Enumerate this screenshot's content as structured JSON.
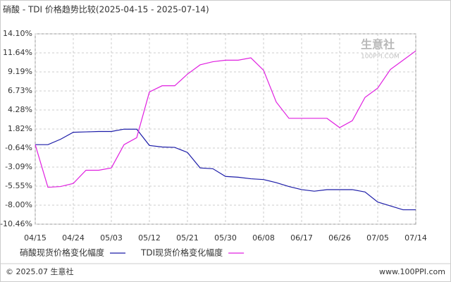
{
  "chart_data": {
    "type": "line",
    "title": "硝酸 - TDI 价格趋势比较(2025-04-15 - 2025-07-14)",
    "categories": [
      "04/15",
      null,
      null,
      "04/24",
      null,
      null,
      "05/03",
      null,
      null,
      "05/12",
      null,
      null,
      "05/21",
      null,
      null,
      "05/30",
      null,
      null,
      "06/08",
      null,
      null,
      "06/17",
      null,
      null,
      "06/26",
      null,
      null,
      "07/05",
      null,
      null,
      "07/14"
    ],
    "series": [
      {
        "name": "硝酸现货价格变化幅度",
        "color": "#1c1ca8",
        "values": [
          -0.2,
          -0.2,
          0.5,
          1.4,
          1.45,
          1.5,
          1.5,
          1.8,
          1.8,
          -0.3,
          -0.5,
          -0.55,
          -1.2,
          -3.2,
          -3.3,
          -4.3,
          -4.4,
          -4.6,
          -4.7,
          -5.1,
          -5.6,
          -6.0,
          -6.2,
          -6.0,
          -6.0,
          -6.0,
          -6.3,
          -7.6,
          -8.1,
          -8.6,
          -8.6
        ]
      },
      {
        "name": "TDI现货价格变化幅度",
        "color": "#e020e0",
        "values": [
          -0.2,
          -5.7,
          -5.6,
          -5.2,
          -3.5,
          -3.5,
          -3.2,
          -0.2,
          0.7,
          6.6,
          7.4,
          7.4,
          8.9,
          10.1,
          10.5,
          10.7,
          10.7,
          11.0,
          9.4,
          5.3,
          3.2,
          3.2,
          3.2,
          3.2,
          2.0,
          2.9,
          5.9,
          7.1,
          9.5,
          10.7,
          11.9
        ]
      }
    ],
    "ylim": [
      -10.46,
      14.1
    ],
    "yticks": [
      {
        "value": 14.1,
        "label": "14.10%"
      },
      {
        "value": 11.64,
        "label": "11.64%"
      },
      {
        "value": 9.19,
        "label": "9.19%"
      },
      {
        "value": 6.73,
        "label": "6.73%"
      },
      {
        "value": 4.28,
        "label": "4.28%"
      },
      {
        "value": 1.82,
        "label": "1.82%"
      },
      {
        "value": -0.64,
        "label": "-0.64%"
      },
      {
        "value": -3.09,
        "label": "-3.09%"
      },
      {
        "value": -5.55,
        "label": "-5.55%"
      },
      {
        "value": -8.0,
        "label": "-8.00%"
      },
      {
        "value": -10.46,
        "label": "-10.46%"
      }
    ],
    "grid": true
  },
  "watermark": {
    "brand": "生意社",
    "site": "100PPI.COM"
  },
  "footer": {
    "left": "© 2025.07 生意社",
    "right": "www.100PPI.com"
  }
}
